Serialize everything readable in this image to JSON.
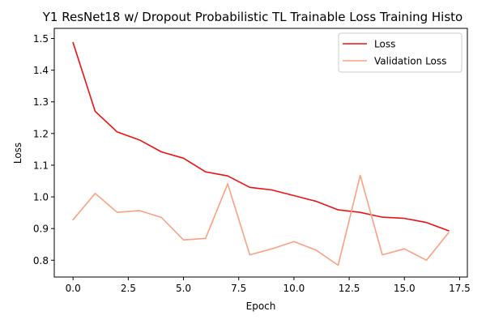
{
  "chart_data": {
    "type": "line",
    "title": "Y1 ResNet18 w/ Dropout Probabilistic TL Trainable Loss Training Histo",
    "xlabel": "Epoch",
    "ylabel": "Loss",
    "xlim": [
      -0.85,
      17.85
    ],
    "ylim": [
      0.747,
      1.532
    ],
    "xticks": [
      0.0,
      2.5,
      5.0,
      7.5,
      10.0,
      12.5,
      15.0,
      17.5
    ],
    "xtick_labels": [
      "0.0",
      "2.5",
      "5.0",
      "7.5",
      "10.0",
      "12.5",
      "15.0",
      "17.5"
    ],
    "yticks": [
      0.8,
      0.9,
      1.0,
      1.1,
      1.2,
      1.3,
      1.4,
      1.5
    ],
    "ytick_labels": [
      "0.8",
      "0.9",
      "1.0",
      "1.1",
      "1.2",
      "1.3",
      "1.4",
      "1.5"
    ],
    "grid": false,
    "legend_position": "top-right",
    "x": [
      0,
      1,
      2,
      3,
      4,
      5,
      6,
      7,
      8,
      9,
      10,
      11,
      12,
      13,
      14,
      15,
      16,
      17
    ],
    "series": [
      {
        "name": "Loss",
        "color": "#ee1111",
        "values": [
          1.487,
          1.27,
          1.205,
          1.18,
          1.142,
          1.122,
          1.079,
          1.066,
          1.03,
          1.022,
          1.004,
          0.986,
          0.959,
          0.951,
          0.936,
          0.932,
          0.919,
          0.893
        ]
      },
      {
        "name": "Validation Loss",
        "color": "#fca082",
        "values": [
          0.928,
          1.011,
          0.951,
          0.957,
          0.935,
          0.864,
          0.869,
          1.041,
          0.817,
          0.836,
          0.859,
          0.832,
          0.784,
          1.068,
          0.817,
          0.836,
          0.8,
          0.887
        ]
      }
    ]
  }
}
